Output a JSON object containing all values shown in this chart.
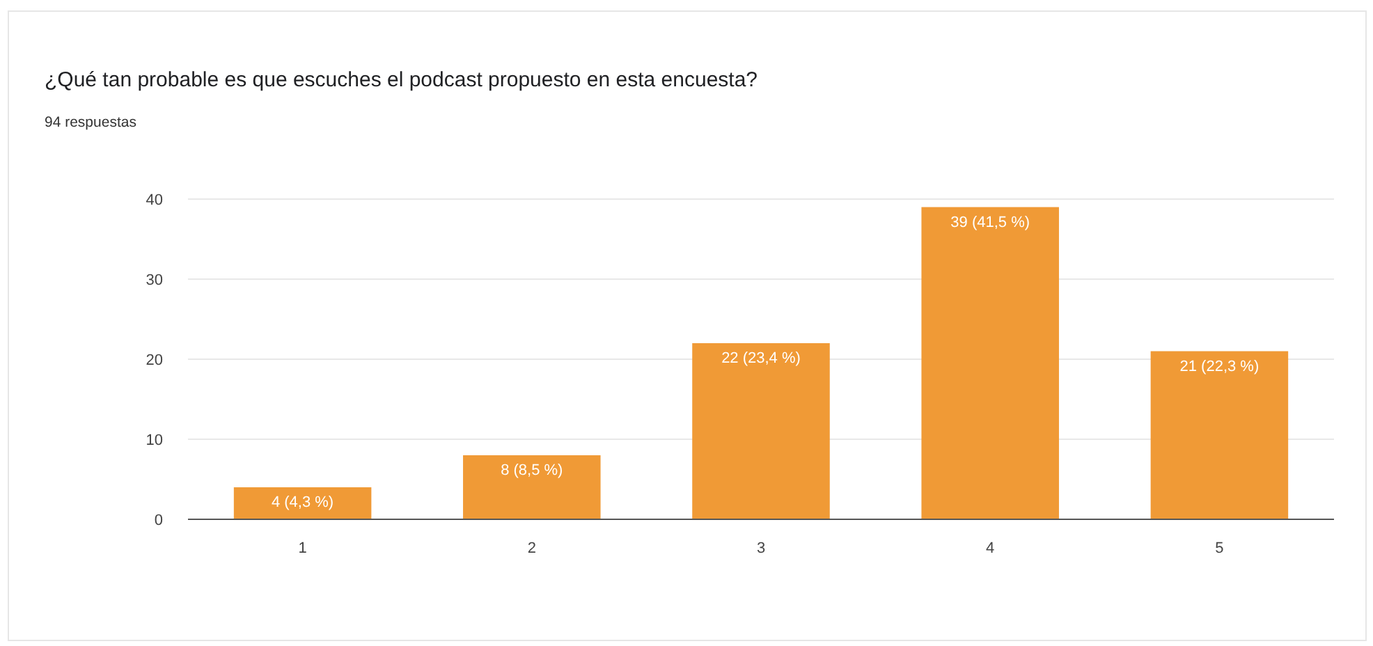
{
  "chart_data": {
    "type": "bar",
    "title": "¿Qué tan probable es que escuches el podcast propuesto en esta encuesta?",
    "subtitle": "94 respuestas",
    "categories": [
      "1",
      "2",
      "3",
      "4",
      "5"
    ],
    "values": [
      4,
      8,
      22,
      39,
      21
    ],
    "value_labels": [
      "4 (4,3 %)",
      "8 (8,5 %)",
      "22 (23,4 %)",
      "39 (41,5 %)",
      "21 (22,3 %)"
    ],
    "color": "#f09a36",
    "ylim": [
      0,
      40
    ],
    "yticks": [
      0,
      10,
      20,
      30,
      40
    ],
    "grid": "y"
  }
}
